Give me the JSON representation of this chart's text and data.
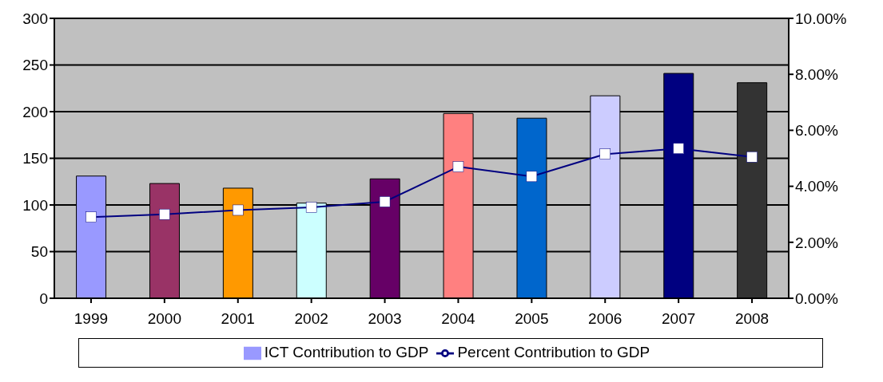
{
  "chart_data": {
    "type": "bar",
    "categories": [
      "1999",
      "2000",
      "2001",
      "2002",
      "2003",
      "2004",
      "2005",
      "2006",
      "2007",
      "2008"
    ],
    "series": [
      {
        "name": "ICT Contribution to GDP",
        "colors": [
          "#9999ff",
          "#993366",
          "#ff9900",
          "#ccffff",
          "#660066",
          "#ff8080",
          "#0066cc",
          "#ccccff",
          "#000080",
          "#333333"
        ],
        "values": [
          131,
          123,
          118,
          102,
          128,
          198,
          193,
          217,
          241,
          231
        ]
      },
      {
        "name": "Percent Contribution to GDP",
        "type": "line",
        "axis": "y2",
        "color": "#000080",
        "values": [
          2.9,
          3.0,
          3.15,
          3.25,
          3.45,
          4.7,
          4.35,
          5.15,
          5.35,
          5.05
        ]
      }
    ],
    "ylim": [
      0,
      300
    ],
    "yticks": [
      0,
      50,
      100,
      150,
      200,
      250,
      300
    ],
    "y2lim": [
      0,
      10
    ],
    "y2ticks": [
      {
        "value": 0,
        "label": "0.00%"
      },
      {
        "value": 2,
        "label": "2.00%"
      },
      {
        "value": 4,
        "label": "4.00%"
      },
      {
        "value": 6,
        "label": "6.00%"
      },
      {
        "value": 8,
        "label": "8.00%"
      },
      {
        "value": 10,
        "label": "10.00%"
      }
    ],
    "grid": "y",
    "legend": "bottom",
    "marker": "square"
  }
}
